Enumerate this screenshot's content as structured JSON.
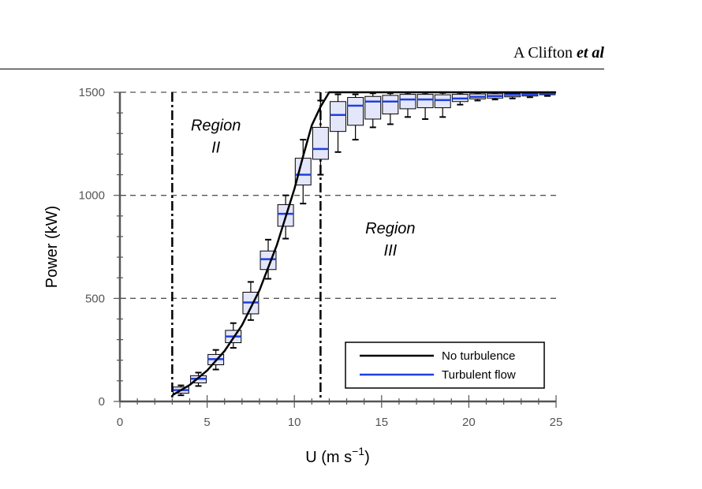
{
  "header": {
    "author_plain": "A Clifton ",
    "author_italic": "et al"
  },
  "chart_data": {
    "type": "box",
    "xlabel_base": "U (m s",
    "xlabel_sup": "−1",
    "xlabel_end": ")",
    "ylabel": "Power (kW)",
    "xlim": [
      0,
      25
    ],
    "ylim": [
      0,
      1500
    ],
    "xticks": [
      0,
      5,
      10,
      15,
      20,
      25
    ],
    "yticks": [
      0,
      500,
      1000,
      1500
    ],
    "grid_y_dashed": [
      500,
      1000,
      1500
    ],
    "region_boundaries": [
      3,
      11.5
    ],
    "regions": [
      {
        "line1": "Region",
        "line2": "II",
        "x": 5.5,
        "y": 1300
      },
      {
        "line1": "Region",
        "line2": "III",
        "x": 15.5,
        "y": 800
      }
    ],
    "legend": {
      "position": "bottom-right",
      "items": [
        {
          "label": "No turbulence",
          "color": "#000000"
        },
        {
          "label": "Turbulent flow",
          "color": "#1f3fe0"
        }
      ]
    },
    "series": [
      {
        "name": "No turbulence",
        "color": "#000000",
        "points": [
          [
            3,
            30
          ],
          [
            4,
            80
          ],
          [
            5,
            150
          ],
          [
            6,
            245
          ],
          [
            7,
            370
          ],
          [
            8,
            540
          ],
          [
            9,
            760
          ],
          [
            10,
            1030
          ],
          [
            10.5,
            1190
          ],
          [
            11,
            1340
          ],
          [
            11.5,
            1430
          ],
          [
            12,
            1500
          ],
          [
            25,
            1500
          ]
        ]
      },
      {
        "name": "Turbulent flow",
        "color": "#1f3fe0",
        "boxes": [
          {
            "x": 3.5,
            "median": 55,
            "q1": 40,
            "q3": 70,
            "wlo": 30,
            "whi": 78
          },
          {
            "x": 4.5,
            "median": 110,
            "q1": 90,
            "q3": 125,
            "wlo": 75,
            "whi": 140
          },
          {
            "x": 5.5,
            "median": 205,
            "q1": 178,
            "q3": 228,
            "wlo": 155,
            "whi": 250
          },
          {
            "x": 6.5,
            "median": 315,
            "q1": 285,
            "q3": 345,
            "wlo": 260,
            "whi": 380
          },
          {
            "x": 7.5,
            "median": 480,
            "q1": 425,
            "q3": 530,
            "wlo": 395,
            "whi": 580
          },
          {
            "x": 8.5,
            "median": 690,
            "q1": 640,
            "q3": 730,
            "wlo": 595,
            "whi": 785
          },
          {
            "x": 9.5,
            "median": 910,
            "q1": 850,
            "q3": 955,
            "wlo": 790,
            "whi": 1000
          },
          {
            "x": 10.5,
            "median": 1100,
            "q1": 1050,
            "q3": 1180,
            "wlo": 960,
            "whi": 1270
          },
          {
            "x": 11.5,
            "median": 1225,
            "q1": 1175,
            "q3": 1330,
            "wlo": 1100,
            "whi": 1460
          },
          {
            "x": 12.5,
            "median": 1390,
            "q1": 1310,
            "q3": 1455,
            "wlo": 1210,
            "whi": 1490
          },
          {
            "x": 13.5,
            "median": 1435,
            "q1": 1340,
            "q3": 1475,
            "wlo": 1270,
            "whi": 1490
          },
          {
            "x": 14.5,
            "median": 1455,
            "q1": 1370,
            "q3": 1480,
            "wlo": 1330,
            "whi": 1495
          },
          {
            "x": 15.5,
            "median": 1455,
            "q1": 1395,
            "q3": 1485,
            "wlo": 1345,
            "whi": 1495
          },
          {
            "x": 16.5,
            "median": 1465,
            "q1": 1420,
            "q3": 1490,
            "wlo": 1380,
            "whi": 1497
          },
          {
            "x": 17.5,
            "median": 1465,
            "q1": 1425,
            "q3": 1490,
            "wlo": 1370,
            "whi": 1497
          },
          {
            "x": 18.5,
            "median": 1462,
            "q1": 1425,
            "q3": 1488,
            "wlo": 1380,
            "whi": 1497
          },
          {
            "x": 19.5,
            "median": 1470,
            "q1": 1455,
            "q3": 1490,
            "wlo": 1440,
            "whi": 1497
          },
          {
            "x": 20.5,
            "median": 1478,
            "q1": 1468,
            "q3": 1492,
            "wlo": 1460,
            "whi": 1498
          },
          {
            "x": 21.5,
            "median": 1482,
            "q1": 1472,
            "q3": 1493,
            "wlo": 1465,
            "whi": 1498
          },
          {
            "x": 22.5,
            "median": 1487,
            "q1": 1478,
            "q3": 1494,
            "wlo": 1470,
            "whi": 1498
          },
          {
            "x": 23.5,
            "median": 1490,
            "q1": 1482,
            "q3": 1496,
            "wlo": 1476,
            "whi": 1499
          },
          {
            "x": 24.5,
            "median": 1494,
            "q1": 1488,
            "q3": 1498,
            "wlo": 1482,
            "whi": 1500
          }
        ]
      }
    ]
  }
}
